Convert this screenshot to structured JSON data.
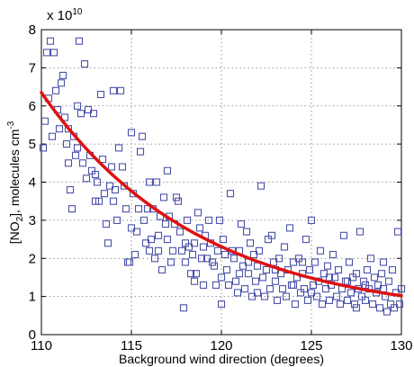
{
  "chart_data": {
    "type": "scatter",
    "xlabel": "Background wind direction (degrees)",
    "ylabel_parts": {
      "pre": "[NO",
      "sub": "2",
      "mid": "], molecules cm",
      "sup": "-3"
    },
    "exponent": {
      "base": "x 10",
      "power": "10"
    },
    "xlim": [
      110,
      130
    ],
    "ylim": [
      0,
      8
    ],
    "x_ticks": [
      "110",
      "115",
      "120",
      "125",
      "130"
    ],
    "y_ticks": [
      "0",
      "1",
      "2",
      "3",
      "4",
      "5",
      "6",
      "7",
      "8"
    ],
    "grid": true,
    "marker": "square-open",
    "colors": {
      "points": "#4a52a8",
      "fit": "#e01010"
    },
    "fit_curve": {
      "type": "exponential",
      "a": 6.35,
      "b": 0.1145,
      "c": 0.42,
      "x0": 110,
      "x1": 130
    },
    "points": [
      [
        110.1,
        4.9
      ],
      [
        110.2,
        5.6
      ],
      [
        110.3,
        7.4
      ],
      [
        110.4,
        6.2
      ],
      [
        110.5,
        7.7
      ],
      [
        110.6,
        5.2
      ],
      [
        110.7,
        7.4
      ],
      [
        110.8,
        6.4
      ],
      [
        110.9,
        5.9
      ],
      [
        111.0,
        5.4
      ],
      [
        111.1,
        6.6
      ],
      [
        111.2,
        6.8
      ],
      [
        111.3,
        5.7
      ],
      [
        111.4,
        5.0
      ],
      [
        111.5,
        4.5
      ],
      [
        111.6,
        3.8
      ],
      [
        111.7,
        3.3
      ],
      [
        111.8,
        5.2
      ],
      [
        111.9,
        4.7
      ],
      [
        112.0,
        6.0
      ],
      [
        112.1,
        7.7
      ],
      [
        112.2,
        5.8
      ],
      [
        112.3,
        4.5
      ],
      [
        112.4,
        7.1
      ],
      [
        112.5,
        4.1
      ],
      [
        112.6,
        5.9
      ],
      [
        112.7,
        4.7
      ],
      [
        112.8,
        4.3
      ],
      [
        112.9,
        5.8
      ],
      [
        113.0,
        3.5
      ],
      [
        113.1,
        4.0
      ],
      [
        113.2,
        3.5
      ],
      [
        113.3,
        6.3
      ],
      [
        113.4,
        4.6
      ],
      [
        113.5,
        3.7
      ],
      [
        113.6,
        2.9
      ],
      [
        113.7,
        2.4
      ],
      [
        113.8,
        3.9
      ],
      [
        113.9,
        4.4
      ],
      [
        114.0,
        6.4
      ],
      [
        114.1,
        3.8
      ],
      [
        114.2,
        3.0
      ],
      [
        114.3,
        4.9
      ],
      [
        114.4,
        6.4
      ],
      [
        114.5,
        4.4
      ],
      [
        114.6,
        3.9
      ],
      [
        114.7,
        3.3
      ],
      [
        114.8,
        1.9
      ],
      [
        114.9,
        1.9
      ],
      [
        115.0,
        5.3
      ],
      [
        115.1,
        3.7
      ],
      [
        115.2,
        2.1
      ],
      [
        115.3,
        2.7
      ],
      [
        115.4,
        3.3
      ],
      [
        115.5,
        4.8
      ],
      [
        115.6,
        5.2
      ],
      [
        115.7,
        3.0
      ],
      [
        115.8,
        2.4
      ],
      [
        115.9,
        3.3
      ],
      [
        116.0,
        4.0
      ],
      [
        116.1,
        2.5
      ],
      [
        116.2,
        3.3
      ],
      [
        116.3,
        2.0
      ],
      [
        116.4,
        4.0
      ],
      [
        116.5,
        2.6
      ],
      [
        116.6,
        3.1
      ],
      [
        116.7,
        1.7
      ],
      [
        116.8,
        3.6
      ],
      [
        116.9,
        2.9
      ],
      [
        117.0,
        4.3
      ],
      [
        117.1,
        3.1
      ],
      [
        117.2,
        1.9
      ],
      [
        117.3,
        2.2
      ],
      [
        117.4,
        2.9
      ],
      [
        117.5,
        3.6
      ],
      [
        117.6,
        3.5
      ],
      [
        117.7,
        2.7
      ],
      [
        117.8,
        2.2
      ],
      [
        117.9,
        0.7
      ],
      [
        118.0,
        2.4
      ],
      [
        118.1,
        3.0
      ],
      [
        118.2,
        2.3
      ],
      [
        118.3,
        1.6
      ],
      [
        118.4,
        2.1
      ],
      [
        118.5,
        2.4
      ],
      [
        118.6,
        1.6
      ],
      [
        118.7,
        3.2
      ],
      [
        118.8,
        2.8
      ],
      [
        118.9,
        2.0
      ],
      [
        119.0,
        1.3
      ],
      [
        119.1,
        2.6
      ],
      [
        119.2,
        2.0
      ],
      [
        119.3,
        3.0
      ],
      [
        119.4,
        2.4
      ],
      [
        119.5,
        1.9
      ],
      [
        119.6,
        1.8
      ],
      [
        119.7,
        1.3
      ],
      [
        119.8,
        2.2
      ],
      [
        119.9,
        3.0
      ],
      [
        120.0,
        0.8
      ],
      [
        120.1,
        2.5
      ],
      [
        120.2,
        2.1
      ],
      [
        120.3,
        1.7
      ],
      [
        120.4,
        1.3
      ],
      [
        120.5,
        3.7
      ],
      [
        120.6,
        2.2
      ],
      [
        120.7,
        2.0
      ],
      [
        120.8,
        1.4
      ],
      [
        120.9,
        1.1
      ],
      [
        121.0,
        2.2
      ],
      [
        121.1,
        2.9
      ],
      [
        121.2,
        1.8
      ],
      [
        121.3,
        1.2
      ],
      [
        121.4,
        2.7
      ],
      [
        121.5,
        1.6
      ],
      [
        121.6,
        2.4
      ],
      [
        121.7,
        1.0
      ],
      [
        121.8,
        2.1
      ],
      [
        121.9,
        1.4
      ],
      [
        122.0,
        1.8
      ],
      [
        122.1,
        2.2
      ],
      [
        122.2,
        3.9
      ],
      [
        122.3,
        1.5
      ],
      [
        122.4,
        1.0
      ],
      [
        122.5,
        1.7
      ],
      [
        122.6,
        2.5
      ],
      [
        122.7,
        1.2
      ],
      [
        122.8,
        2.6
      ],
      [
        122.9,
        1.9
      ],
      [
        123.0,
        1.4
      ],
      [
        123.1,
        0.9
      ],
      [
        123.2,
        2.0
      ],
      [
        123.3,
        1.6
      ],
      [
        123.4,
        1.2
      ],
      [
        123.5,
        2.3
      ],
      [
        123.6,
        1.0
      ],
      [
        123.7,
        1.7
      ],
      [
        123.8,
        2.8
      ],
      [
        123.9,
        1.3
      ],
      [
        124.0,
        1.9
      ],
      [
        124.1,
        0.8
      ],
      [
        124.2,
        1.5
      ],
      [
        124.3,
        2.0
      ],
      [
        124.4,
        1.1
      ],
      [
        124.5,
        1.6
      ],
      [
        124.6,
        1.2
      ],
      [
        124.7,
        2.5
      ],
      [
        124.8,
        0.9
      ],
      [
        124.9,
        1.7
      ],
      [
        125.0,
        3.0
      ],
      [
        125.1,
        1.3
      ],
      [
        125.2,
        1.9
      ],
      [
        125.3,
        1.0
      ],
      [
        125.4,
        1.4
      ],
      [
        125.5,
        2.2
      ],
      [
        125.6,
        0.8
      ],
      [
        125.7,
        1.6
      ],
      [
        125.8,
        1.2
      ],
      [
        125.9,
        1.8
      ],
      [
        126.0,
        0.9
      ],
      [
        126.1,
        1.3
      ],
      [
        126.2,
        2.1
      ],
      [
        126.3,
        1.5
      ],
      [
        126.4,
        1.0
      ],
      [
        126.5,
        1.7
      ],
      [
        126.6,
        0.8
      ],
      [
        126.7,
        1.2
      ],
      [
        126.8,
        2.6
      ],
      [
        126.9,
        1.4
      ],
      [
        127.0,
        0.9
      ],
      [
        127.1,
        1.9
      ],
      [
        127.2,
        1.1
      ],
      [
        127.3,
        1.5
      ],
      [
        127.4,
        0.8
      ],
      [
        127.5,
        1.6
      ],
      [
        127.6,
        1.2
      ],
      [
        127.7,
        2.7
      ],
      [
        127.8,
        1.0
      ],
      [
        127.9,
        1.4
      ],
      [
        128.0,
        0.9
      ],
      [
        128.1,
        1.7
      ],
      [
        128.2,
        1.2
      ],
      [
        128.3,
        2.0
      ],
      [
        128.4,
        0.8
      ],
      [
        128.5,
        1.5
      ],
      [
        128.6,
        1.1
      ],
      [
        128.7,
        1.3
      ],
      [
        128.8,
        0.7
      ],
      [
        128.9,
        1.6
      ],
      [
        129.0,
        1.9
      ],
      [
        129.1,
        1.0
      ],
      [
        129.2,
        0.6
      ],
      [
        129.3,
        1.4
      ],
      [
        129.4,
        0.8
      ],
      [
        129.5,
        1.7
      ],
      [
        129.6,
        0.7
      ],
      [
        129.7,
        1.1
      ],
      [
        129.8,
        2.7
      ],
      [
        129.9,
        0.8
      ],
      [
        130.0,
        1.2
      ],
      [
        111.5,
        5.4
      ],
      [
        112.0,
        4.9
      ],
      [
        113.0,
        4.2
      ],
      [
        115.0,
        2.8
      ],
      [
        116.0,
        2.2
      ],
      [
        117.0,
        2.5
      ],
      [
        118.0,
        1.9
      ],
      [
        119.0,
        2.3
      ],
      [
        120.0,
        1.5
      ],
      [
        121.0,
        1.6
      ],
      [
        122.0,
        1.1
      ],
      [
        123.0,
        1.7
      ],
      [
        124.0,
        1.3
      ],
      [
        125.0,
        1.1
      ],
      [
        126.0,
        1.5
      ],
      [
        127.0,
        1.4
      ],
      [
        128.0,
        1.3
      ],
      [
        129.0,
        1.2
      ],
      [
        114.0,
        3.5
      ],
      [
        116.5,
        2.2
      ],
      [
        118.5,
        1.4
      ],
      [
        121.5,
        1.9
      ],
      [
        124.5,
        1.9
      ],
      [
        127.5,
        0.7
      ]
    ]
  }
}
